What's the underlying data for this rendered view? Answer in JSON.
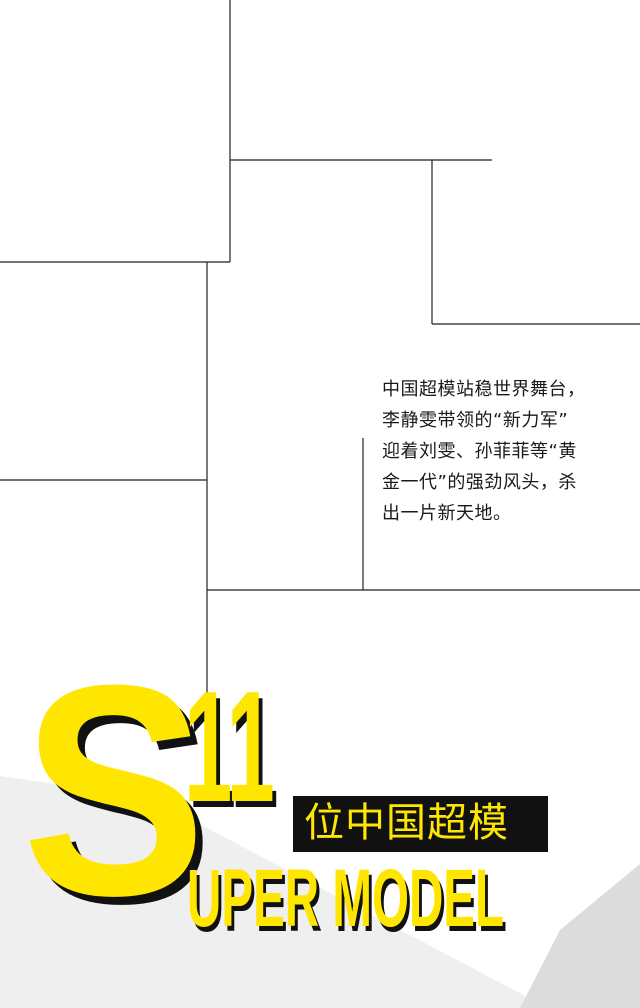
{
  "intro": {
    "lines": [
      "中国超模站稳世界舞台，",
      "李静雯带领的“新力军”",
      "迎着刘雯、孙菲菲等“黄",
      "金一代”的强劲风头，杀",
      "出一片新天地。"
    ]
  },
  "headline": {
    "big_letter": "S",
    "number": "11",
    "cn_title": "位中国超模",
    "en_title": "UPER MODEL"
  },
  "colors": {
    "accent": "#ffe600",
    "ink": "#111111",
    "line": "#222222",
    "shape": "#efefef"
  }
}
